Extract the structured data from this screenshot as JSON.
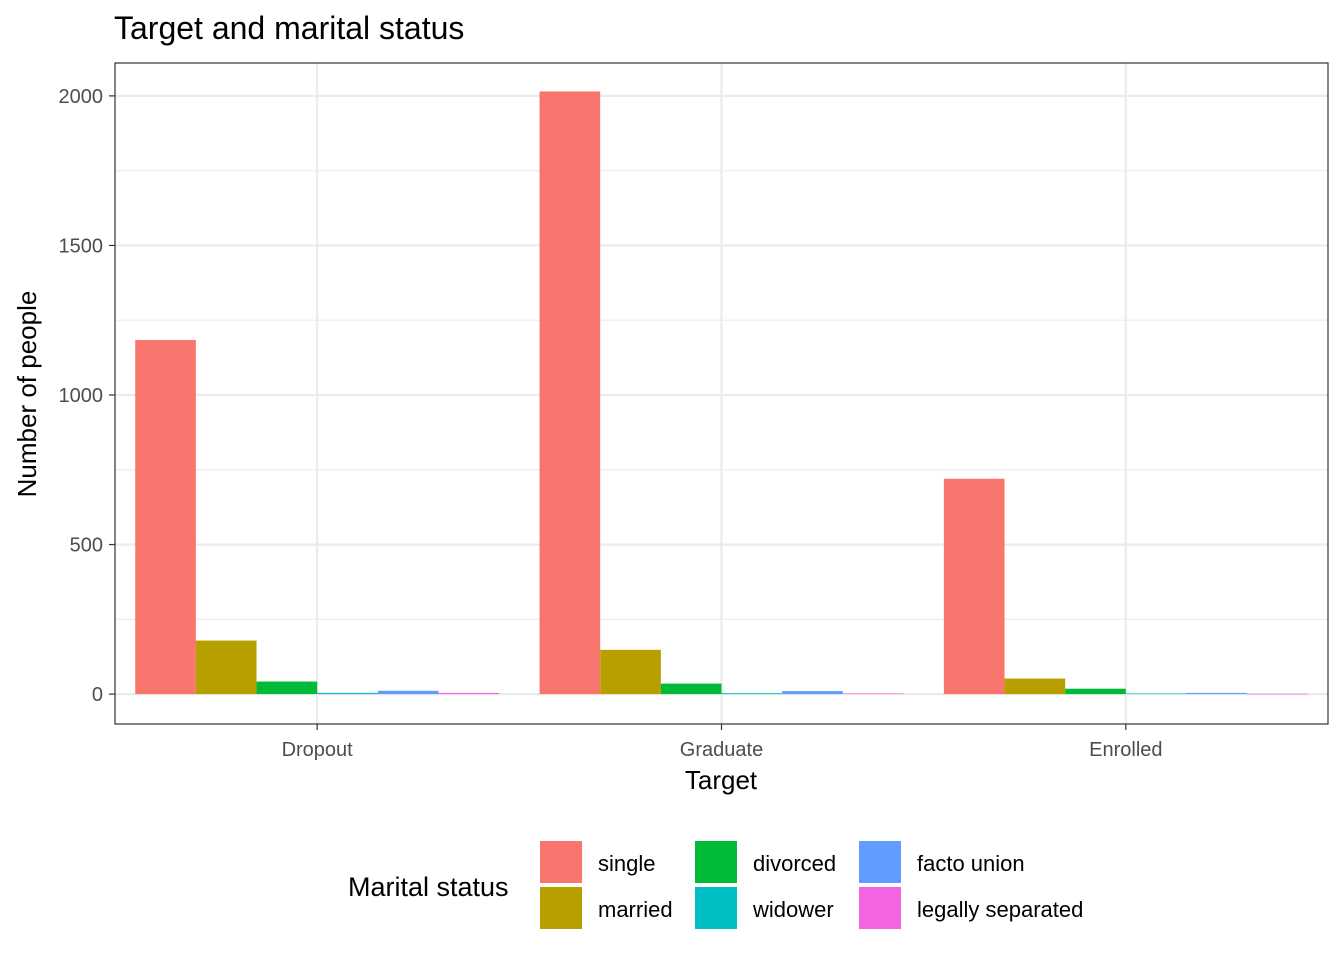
{
  "chart_data": {
    "type": "bar",
    "title": "Target and marital status",
    "xlabel": "Target",
    "ylabel": "Number of people",
    "categories": [
      "Dropout",
      "Graduate",
      "Enrolled"
    ],
    "ylim": [
      -100,
      2110
    ],
    "yticks": [
      0,
      500,
      1000,
      1500,
      2000
    ],
    "grid": true,
    "legend": {
      "title": "Marital status",
      "placement": "bottom"
    },
    "series": [
      {
        "name": "single",
        "color": "#F8766D",
        "values": [
          1184,
          2015,
          720
        ]
      },
      {
        "name": "married",
        "color": "#B79F00",
        "values": [
          179,
          148,
          52
        ]
      },
      {
        "name": "divorced",
        "color": "#00BA38",
        "values": [
          42,
          35,
          18
        ]
      },
      {
        "name": "widower",
        "color": "#00BFC4",
        "values": [
          4,
          3,
          2
        ]
      },
      {
        "name": "facto union",
        "color": "#619CFF",
        "values": [
          11,
          10,
          4
        ]
      },
      {
        "name": "legally separated",
        "color": "#F564E3",
        "values": [
          4,
          2,
          1
        ]
      }
    ]
  }
}
